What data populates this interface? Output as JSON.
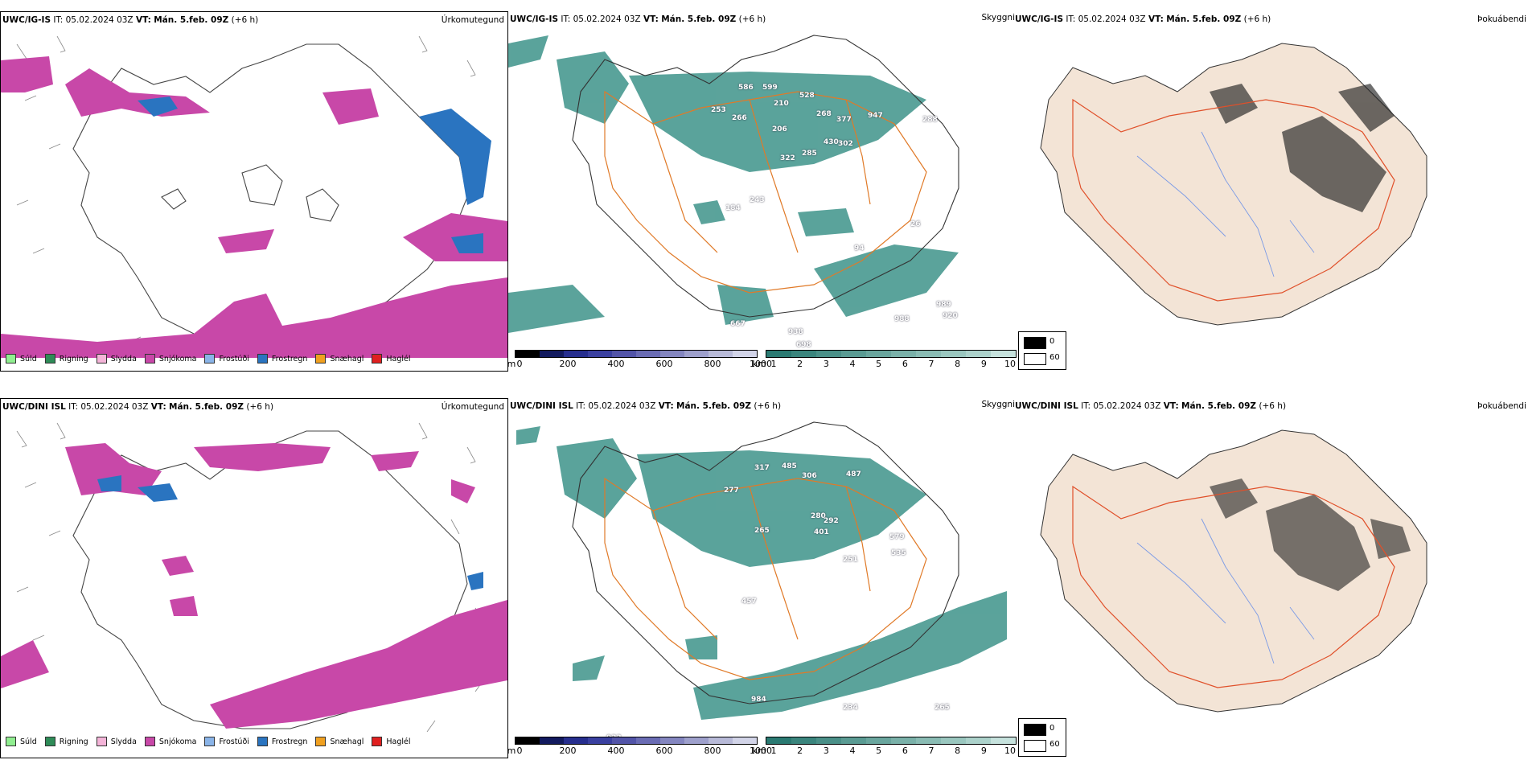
{
  "panels": [
    {
      "model": "UWC/IG-IS",
      "it_label": "IT:",
      "it_value": "05.02.2024 03Z",
      "vt_label": "VT:",
      "vt_value": "Mán. 5.feb. 09Z",
      "lead": "(+6 h)",
      "titles": {
        "precip": "Úrkomutegund",
        "vis": "Skyggni",
        "fog": "Þokuábendi"
      },
      "vis_labels": [
        "586",
        "599",
        "528",
        "253",
        "266",
        "210",
        "268",
        "377",
        "947",
        "288",
        "206",
        "430",
        "302",
        "285",
        "322",
        "184",
        "94",
        "26",
        "243",
        "989",
        "988",
        "920",
        "667",
        "938",
        "698"
      ]
    },
    {
      "model": "UWC/DINI ISL",
      "it_label": "IT:",
      "it_value": "05.02.2024 03Z",
      "vt_label": "VT:",
      "vt_value": "Mán. 5.feb. 09Z",
      "lead": "(+6 h)",
      "titles": {
        "precip": "Úrkomutegund",
        "vis": "Skyggni",
        "fog": "Þokuábendi"
      },
      "vis_labels": [
        "317",
        "485",
        "306",
        "487",
        "277",
        "280",
        "292",
        "401",
        "579",
        "535",
        "265",
        "251",
        "457",
        "984",
        "234",
        "265",
        "933"
      ]
    }
  ],
  "precip_legend": [
    {
      "label": "Súld",
      "color": "#90ee90"
    },
    {
      "label": "Rigning",
      "color": "#2e8b57"
    },
    {
      "label": "Slydda",
      "color": "#f4b4d8"
    },
    {
      "label": "Snjókoma",
      "color": "#c848a8"
    },
    {
      "label": "Frostúði",
      "color": "#8ab4e8"
    },
    {
      "label": "Frostregn",
      "color": "#2a74c0"
    },
    {
      "label": "Snæhagl",
      "color": "#f0a020"
    },
    {
      "label": "Haglél",
      "color": "#e02020"
    }
  ],
  "vis_colorbar": {
    "m_unit": "m",
    "m_ticks": [
      "0",
      "200",
      "400",
      "600",
      "800",
      "1000"
    ],
    "m_colors": [
      "#000000",
      "#121a5e",
      "#262e8e",
      "#3a40a0",
      "#5254a8",
      "#6a6cb4",
      "#8486c0",
      "#9ea0cc",
      "#b8bad8",
      "#d2d4e8"
    ],
    "km_unit": "km",
    "km_ticks": [
      "1",
      "2",
      "3",
      "4",
      "5",
      "6",
      "7",
      "8",
      "9",
      "10"
    ],
    "km_colors": [
      "#2a7a72",
      "#3a857d",
      "#4a9088",
      "#5a9b93",
      "#6aa69e",
      "#7ab1a9",
      "#8abcb4",
      "#9ac7bf",
      "#acd2cb",
      "#c6e2dd"
    ]
  },
  "fog_legend": {
    "values": [
      "0",
      "60"
    ]
  },
  "colors": {
    "snow": "#c848a8",
    "freezing_rain": "#2a74c0",
    "vis_teal": "#3e938a",
    "roads": "#e07a28",
    "fog_land": "#f3e4d6",
    "fog_red_roads": "#e0502a",
    "fog_blue_rivers": "#7a9ae6"
  }
}
